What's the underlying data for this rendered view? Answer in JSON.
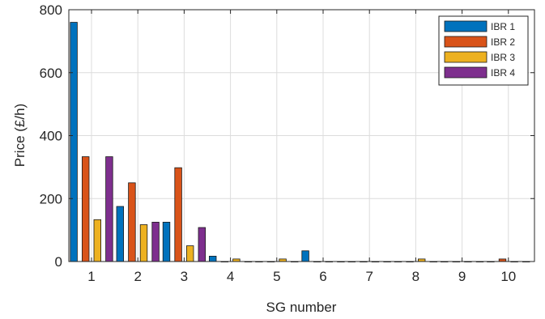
{
  "chart_data": {
    "type": "bar",
    "title": "",
    "xlabel": "SG number",
    "ylabel": "Price (£/h)",
    "categories": [
      "1",
      "2",
      "3",
      "4",
      "5",
      "6",
      "7",
      "8",
      "9",
      "10"
    ],
    "ylim": [
      0,
      800
    ],
    "yticks": [
      0,
      200,
      400,
      600,
      800
    ],
    "grid": true,
    "legend_position": "top-right",
    "series": [
      {
        "name": "IBR 1",
        "color": "#0072BD",
        "values": [
          760,
          175,
          125,
          17,
          0,
          34,
          0,
          0,
          0,
          0
        ]
      },
      {
        "name": "IBR 2",
        "color": "#D95319",
        "values": [
          333,
          250,
          298,
          0,
          0,
          0,
          0,
          0,
          0,
          8
        ]
      },
      {
        "name": "IBR 3",
        "color": "#EDB120",
        "values": [
          133,
          117,
          50,
          8,
          8,
          0,
          0,
          8,
          0,
          0
        ]
      },
      {
        "name": "IBR 4",
        "color": "#7E2F8E",
        "values": [
          333,
          125,
          108,
          0,
          0,
          0,
          0,
          0,
          0,
          0
        ]
      }
    ]
  }
}
